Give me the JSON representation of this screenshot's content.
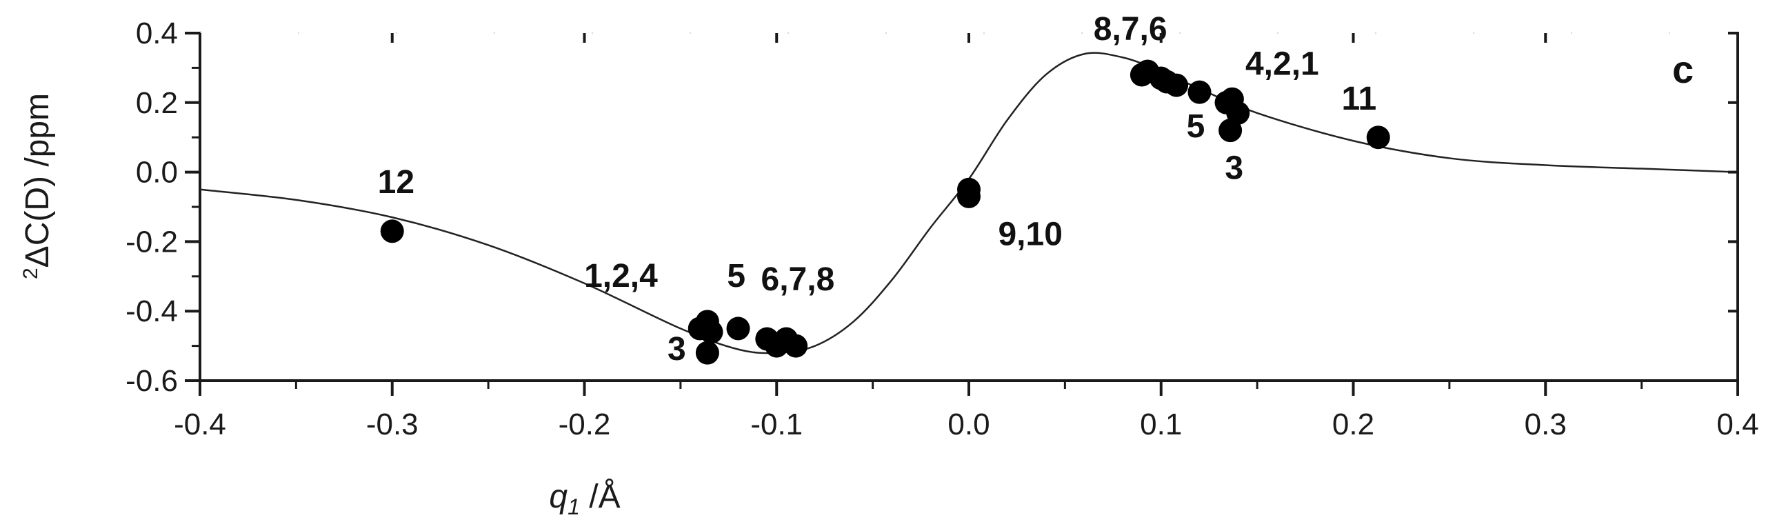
{
  "chart_data": {
    "type": "scatter",
    "panel_label": "c",
    "xlabel_var": "q",
    "xlabel_sub": "1",
    "xlabel_unit": " /Å",
    "ylabel_sup": "2",
    "ylabel_main": "ΔC(D) /ppm",
    "xlim": [
      -0.4,
      0.4
    ],
    "ylim": [
      -0.6,
      0.4
    ],
    "xticks": [
      -0.4,
      -0.3,
      -0.2,
      -0.1,
      0.0,
      0.1,
      0.2,
      0.3,
      0.4
    ],
    "xtick_labels": [
      "-0.4",
      "-0.3",
      "-0.2",
      "-0.1",
      "0.0",
      "0.1",
      "0.2",
      "0.3",
      "0.4"
    ],
    "yticks": [
      -0.6,
      -0.4,
      -0.2,
      0.0,
      0.2,
      0.4
    ],
    "ytick_labels": [
      "-0.6",
      "-0.4",
      "-0.2",
      "0.0",
      "0.2",
      "0.4"
    ],
    "grid": false,
    "points": [
      {
        "x": -0.3,
        "y": -0.17
      },
      {
        "x": -0.14,
        "y": -0.45
      },
      {
        "x": -0.136,
        "y": -0.43
      },
      {
        "x": -0.134,
        "y": -0.46
      },
      {
        "x": -0.136,
        "y": -0.52
      },
      {
        "x": -0.12,
        "y": -0.45
      },
      {
        "x": -0.105,
        "y": -0.48
      },
      {
        "x": -0.1,
        "y": -0.5
      },
      {
        "x": -0.095,
        "y": -0.48
      },
      {
        "x": -0.09,
        "y": -0.5
      },
      {
        "x": 0.0,
        "y": -0.05
      },
      {
        "x": 0.0,
        "y": -0.07
      },
      {
        "x": 0.09,
        "y": 0.28
      },
      {
        "x": 0.093,
        "y": 0.29
      },
      {
        "x": 0.1,
        "y": 0.27
      },
      {
        "x": 0.103,
        "y": 0.26
      },
      {
        "x": 0.108,
        "y": 0.25
      },
      {
        "x": 0.12,
        "y": 0.23
      },
      {
        "x": 0.134,
        "y": 0.2
      },
      {
        "x": 0.137,
        "y": 0.21
      },
      {
        "x": 0.14,
        "y": 0.17
      },
      {
        "x": 0.136,
        "y": 0.12
      },
      {
        "x": 0.213,
        "y": 0.1
      }
    ],
    "curve": {
      "x": [
        -0.4,
        -0.35,
        -0.3,
        -0.25,
        -0.2,
        -0.15,
        -0.12,
        -0.1,
        -0.08,
        -0.06,
        -0.04,
        -0.02,
        0.0,
        0.02,
        0.04,
        0.06,
        0.08,
        0.1,
        0.12,
        0.15,
        0.2,
        0.25,
        0.3,
        0.35,
        0.4
      ],
      "y": [
        -0.05,
        -0.08,
        -0.13,
        -0.21,
        -0.32,
        -0.45,
        -0.51,
        -0.52,
        -0.5,
        -0.43,
        -0.31,
        -0.16,
        -0.02,
        0.15,
        0.28,
        0.34,
        0.33,
        0.29,
        0.24,
        0.17,
        0.09,
        0.04,
        0.02,
        0.01,
        0.0
      ]
    },
    "annotations": [
      {
        "text": "12",
        "x": -0.298,
        "y": -0.06
      },
      {
        "text": "1,2,4",
        "x": -0.181,
        "y": -0.33
      },
      {
        "text": "5",
        "x": -0.121,
        "y": -0.33
      },
      {
        "text": "3",
        "x": -0.152,
        "y": -0.54
      },
      {
        "text": "6,7,8",
        "x": -0.089,
        "y": -0.34
      },
      {
        "text": "9,10",
        "x": 0.032,
        "y": -0.21
      },
      {
        "text": "8,7,6",
        "x": 0.084,
        "y": 0.38
      },
      {
        "text": "4,2,1",
        "x": 0.163,
        "y": 0.28
      },
      {
        "text": "5",
        "x": 0.118,
        "y": 0.1
      },
      {
        "text": "3",
        "x": 0.138,
        "y": -0.02
      },
      {
        "text": "11",
        "x": 0.203,
        "y": 0.18
      }
    ]
  }
}
